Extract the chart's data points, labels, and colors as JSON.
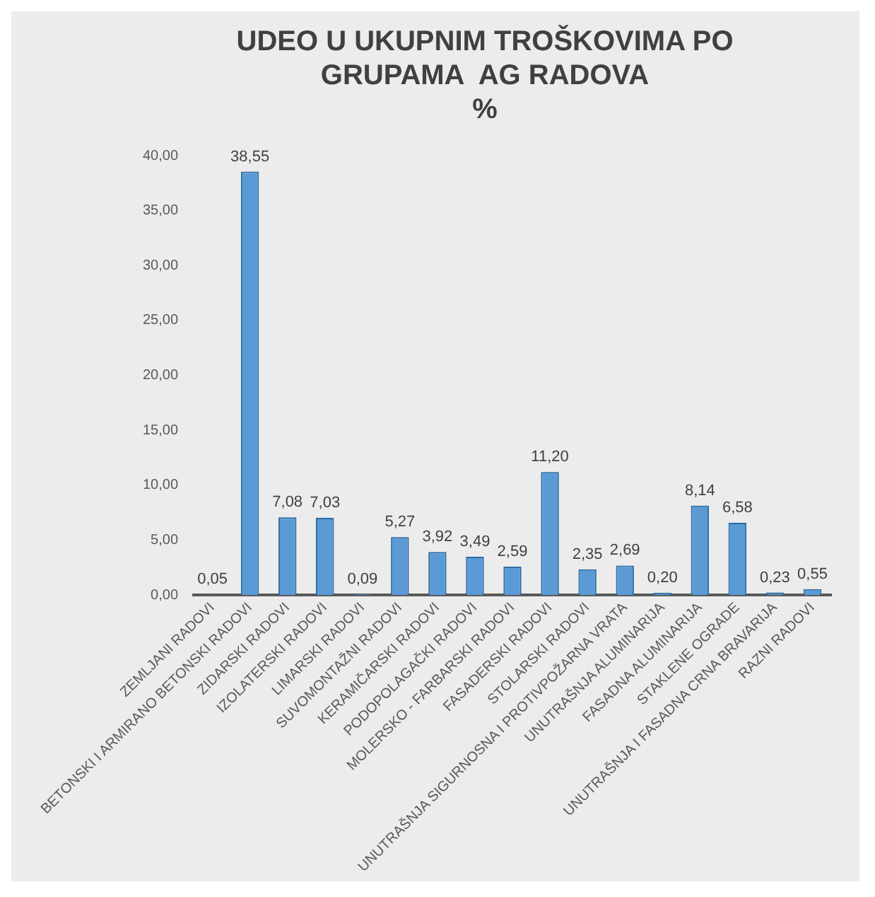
{
  "chart_data": {
    "type": "bar",
    "title": [
      "UDEO U UKUPNIM TROŠKOVIMA PO",
      "GRUPAMA  AG RADOVA",
      "%"
    ],
    "categories": [
      "ZEMLJANI RADOVI",
      "BETONSKI I ARMIRANO BETONSKI RADOVI",
      "ZIDARSKI RADOVI",
      "IZOLATERSKI RADOVI",
      "LIMARSKI RADOVI",
      "SUVOMONTAŽNI RADOVI",
      "KERAMIČARSKI RADOVI",
      "PODOPOLAGAČKI RADOVI",
      "MOLERSKO - FARBARSKI RADOVI",
      "FASADERSKI RADOVI",
      "STOLARSKI RADOVI",
      "UNUTRAŠNJA SIGURNOSNA I PROTIVPOŽARNA VRATA",
      "UNUTRAŠNJA ALUMINARIJA",
      "FASADNA ALUMINARIJA",
      "STAKLENE OGRADE",
      "UNUTRAŠNJA I FASADNA CRNA BRAVARIJA",
      "RAZNI RADOVI"
    ],
    "values": [
      0.05,
      38.55,
      7.08,
      7.03,
      0.09,
      5.27,
      3.92,
      3.49,
      2.59,
      11.2,
      2.35,
      2.69,
      0.2,
      8.14,
      6.58,
      0.23,
      0.55
    ],
    "value_labels": [
      "0,05",
      "38,55",
      "7,08",
      "7,03",
      "0,09",
      "5,27",
      "3,92",
      "3,49",
      "2,59",
      "11,20",
      "2,35",
      "2,69",
      "0,20",
      "8,14",
      "6,58",
      "0,23",
      "0,55"
    ],
    "color": "#5b9bd5",
    "ylim": [
      0,
      40
    ],
    "yticks": [
      {
        "value": 0,
        "label": "0,00"
      },
      {
        "value": 5,
        "label": "5,00"
      },
      {
        "value": 10,
        "label": "10,00"
      },
      {
        "value": 15,
        "label": "15,00"
      },
      {
        "value": 20,
        "label": "20,00"
      },
      {
        "value": 25,
        "label": "25,00"
      },
      {
        "value": 30,
        "label": "30,00"
      },
      {
        "value": 35,
        "label": "35,00"
      },
      {
        "value": 40,
        "label": "40,00"
      }
    ],
    "grid": false,
    "legend": false
  }
}
